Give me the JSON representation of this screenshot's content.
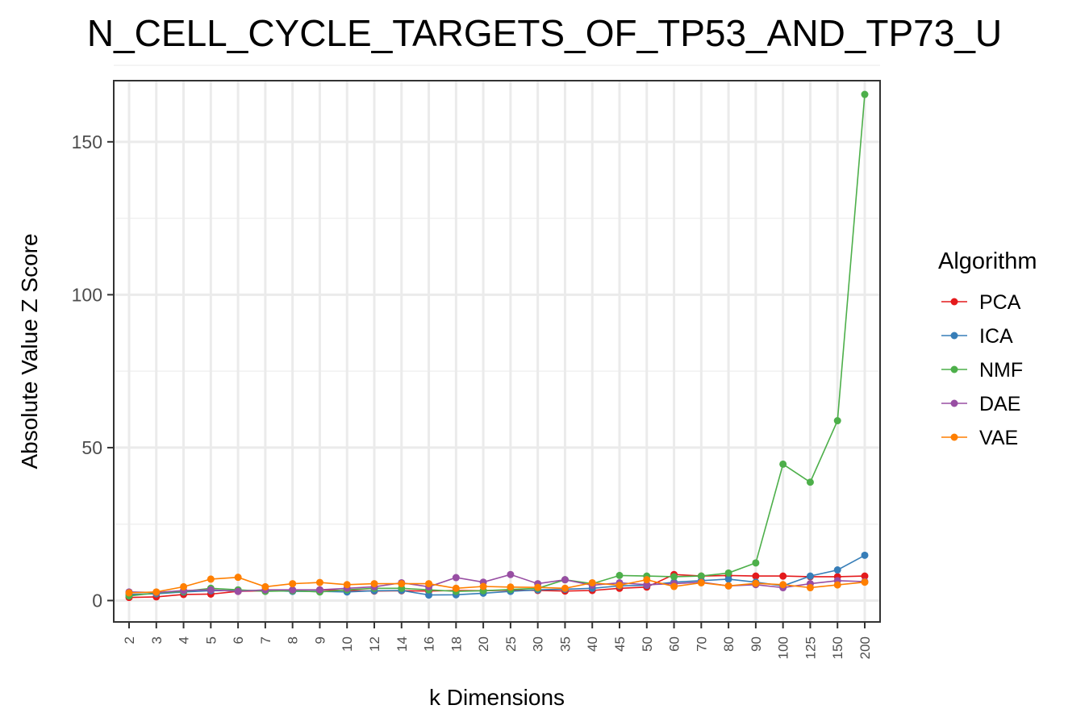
{
  "chart_data": {
    "type": "line",
    "title": "N_CELL_CYCLE_TARGETS_OF_TP53_AND_TP73_U",
    "xlabel": "k Dimensions",
    "ylabel": "Absolute Value Z Score",
    "categories": [
      "2",
      "3",
      "4",
      "5",
      "6",
      "7",
      "8",
      "9",
      "10",
      "12",
      "14",
      "16",
      "18",
      "20",
      "25",
      "30",
      "35",
      "40",
      "45",
      "50",
      "60",
      "70",
      "80",
      "90",
      "100",
      "125",
      "150",
      "200"
    ],
    "ylim": [
      -7,
      170
    ],
    "yticks": [
      0,
      50,
      100,
      150
    ],
    "grid": true,
    "legend_title": "Algorithm",
    "legend_position": "right",
    "series": [
      {
        "name": "PCA",
        "color": "#E41A1C",
        "values": [
          1.0,
          1.2,
          2.0,
          2.1,
          3.0,
          3.2,
          3.4,
          3.5,
          3.3,
          3.1,
          3.2,
          3.1,
          3.3,
          3.2,
          3.4,
          3.3,
          3.1,
          3.3,
          4.0,
          4.4,
          8.5,
          8.0,
          8.2,
          8.0,
          8.0,
          7.8,
          7.8,
          8.0
        ]
      },
      {
        "name": "ICA",
        "color": "#377EB8",
        "values": [
          2.0,
          2.2,
          2.8,
          3.2,
          3.3,
          3.3,
          3.0,
          3.0,
          2.8,
          3.2,
          3.3,
          1.8,
          1.9,
          2.4,
          3.0,
          3.5,
          3.7,
          4.0,
          4.8,
          5.0,
          6.0,
          6.5,
          7.0,
          6.0,
          4.8,
          8.0,
          10.0,
          14.8
        ]
      },
      {
        "name": "NMF",
        "color": "#4DAF4A",
        "values": [
          1.5,
          2.5,
          3.0,
          4.0,
          3.5,
          3.0,
          3.2,
          2.8,
          3.5,
          4.0,
          4.0,
          3.5,
          3.0,
          3.2,
          3.6,
          4.0,
          6.8,
          5.5,
          8.2,
          8.0,
          7.8,
          8.0,
          9.0,
          12.3,
          44.6,
          38.7,
          58.8,
          165.5
        ]
      },
      {
        "name": "DAE",
        "color": "#984EA3",
        "values": [
          2.8,
          2.6,
          3.3,
          3.5,
          3.0,
          3.5,
          3.5,
          3.5,
          4.0,
          4.5,
          5.8,
          4.5,
          7.5,
          6.0,
          8.5,
          5.5,
          6.8,
          5.0,
          5.8,
          5.2,
          5.5,
          6.0,
          4.8,
          5.2,
          4.2,
          5.5,
          6.5,
          6.2
        ]
      },
      {
        "name": "VAE",
        "color": "#FF7F00",
        "values": [
          2.5,
          2.8,
          4.5,
          7.0,
          7.6,
          4.5,
          5.5,
          5.9,
          5.2,
          5.5,
          5.5,
          5.5,
          4.0,
          4.6,
          4.4,
          4.3,
          4.0,
          5.8,
          5.0,
          6.8,
          4.6,
          5.8,
          4.8,
          5.6,
          5.2,
          4.2,
          5.1,
          6.0
        ]
      }
    ]
  }
}
